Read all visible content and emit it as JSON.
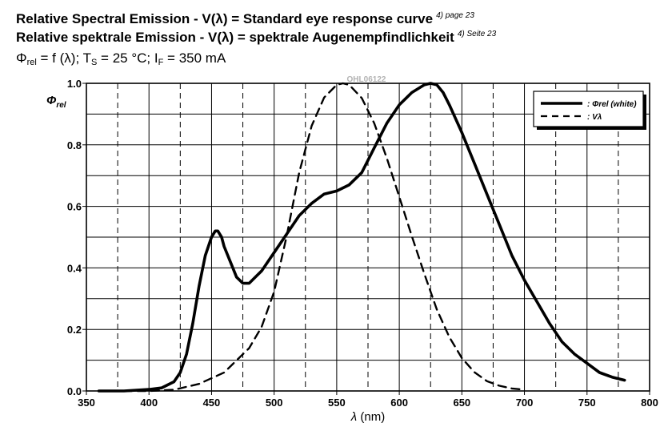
{
  "header": {
    "title_en": "Relative Spectral Emission - V(λ) = Standard eye response curve",
    "title_en_ref": "4) page 23",
    "title_de": "Relative spektrale Emission - V(λ) = spektrale Augenempfindlichkeit",
    "title_de_ref": "4) Seite 23",
    "cond": {
      "phi": "Φ",
      "phi_sub": "rel",
      "eq1": " = f (λ); T",
      "ts_sub": "S",
      "eq2": " = 25 °C; I",
      "if_sub": "F",
      "eq3": " = 350 mA"
    }
  },
  "chart_data": {
    "type": "line",
    "code": "OHL06122",
    "ylabel": "Φrel",
    "xlabel": "λ (nm)",
    "xlim": [
      350,
      800
    ],
    "ylim": [
      0,
      1.0
    ],
    "xticks": [
      350,
      400,
      450,
      500,
      550,
      600,
      650,
      700,
      750,
      800
    ],
    "yticks": [
      0.0,
      0.2,
      0.4,
      0.6,
      0.8,
      1.0
    ],
    "ytick_labels": [
      "0.0",
      "0.2",
      "0.4",
      "0.6",
      "0.8",
      "1.0"
    ],
    "grid": true,
    "legend_position": "top-right",
    "series": [
      {
        "name": ": Φrel (white)",
        "style": "solid",
        "x": [
          360,
          380,
          400,
          410,
          420,
          425,
          430,
          435,
          440,
          445,
          450,
          453,
          455,
          458,
          460,
          465,
          470,
          475,
          480,
          485,
          490,
          495,
          500,
          510,
          520,
          530,
          540,
          550,
          560,
          570,
          580,
          590,
          600,
          610,
          620,
          625,
          630,
          635,
          640,
          650,
          660,
          670,
          680,
          690,
          700,
          710,
          720,
          730,
          740,
          750,
          760,
          770,
          780
        ],
        "y": [
          0.0,
          0.0,
          0.005,
          0.01,
          0.03,
          0.06,
          0.12,
          0.22,
          0.34,
          0.44,
          0.5,
          0.52,
          0.52,
          0.5,
          0.47,
          0.42,
          0.37,
          0.35,
          0.35,
          0.37,
          0.39,
          0.42,
          0.45,
          0.51,
          0.57,
          0.61,
          0.64,
          0.65,
          0.67,
          0.71,
          0.79,
          0.87,
          0.93,
          0.97,
          0.995,
          1.0,
          0.995,
          0.97,
          0.93,
          0.84,
          0.74,
          0.64,
          0.54,
          0.44,
          0.36,
          0.29,
          0.22,
          0.16,
          0.12,
          0.09,
          0.06,
          0.045,
          0.035
        ]
      },
      {
        "name": ": Vλ",
        "style": "dashed",
        "x": [
          380,
          400,
          420,
          440,
          460,
          480,
          490,
          500,
          510,
          520,
          530,
          540,
          550,
          555,
          560,
          570,
          580,
          590,
          600,
          610,
          620,
          630,
          640,
          650,
          660,
          670,
          680,
          690,
          700
        ],
        "y": [
          0.0,
          0.0,
          0.004,
          0.023,
          0.06,
          0.139,
          0.208,
          0.323,
          0.503,
          0.71,
          0.862,
          0.954,
          0.995,
          1.0,
          0.995,
          0.952,
          0.87,
          0.757,
          0.631,
          0.503,
          0.381,
          0.265,
          0.175,
          0.107,
          0.061,
          0.032,
          0.017,
          0.008,
          0.004
        ]
      }
    ]
  }
}
